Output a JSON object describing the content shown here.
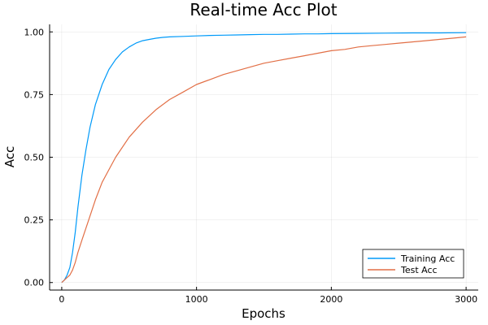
{
  "chart_data": {
    "type": "line",
    "title": "Real-time Acc Plot",
    "xlabel": "Epochs",
    "ylabel": "Acc",
    "xlim": [
      -90,
      3090
    ],
    "ylim": [
      -0.03,
      1.03
    ],
    "xticks": [
      0,
      1000,
      2000,
      3000
    ],
    "xtick_labels": [
      "0",
      "1000",
      "2000",
      "3000"
    ],
    "yticks": [
      0,
      0.25,
      0.5,
      0.75,
      1.0
    ],
    "ytick_labels": [
      "0.00",
      "0.25",
      "0.50",
      "0.75",
      "1.00"
    ],
    "grid": true,
    "legend_position": "bottom-right",
    "series": [
      {
        "name": "Training Acc",
        "color": "#009af9",
        "x": [
          0,
          20,
          40,
          60,
          80,
          100,
          120,
          150,
          180,
          210,
          250,
          300,
          350,
          400,
          450,
          500,
          550,
          600,
          650,
          700,
          750,
          800,
          900,
          1000,
          1100,
          1200,
          1300,
          1400,
          1500,
          1600,
          1700,
          1800,
          1900,
          2000,
          2200,
          2400,
          2600,
          2800,
          3000
        ],
        "y": [
          0.0,
          0.01,
          0.03,
          0.06,
          0.12,
          0.2,
          0.3,
          0.43,
          0.53,
          0.62,
          0.71,
          0.79,
          0.85,
          0.89,
          0.92,
          0.94,
          0.955,
          0.965,
          0.97,
          0.975,
          0.978,
          0.98,
          0.982,
          0.984,
          0.986,
          0.987,
          0.988,
          0.989,
          0.99,
          0.99,
          0.991,
          0.992,
          0.992,
          0.993,
          0.994,
          0.995,
          0.996,
          0.996,
          0.997
        ]
      },
      {
        "name": "Test Acc",
        "color": "#e26f46",
        "x": [
          0,
          20,
          40,
          60,
          80,
          100,
          120,
          150,
          200,
          250,
          300,
          350,
          400,
          500,
          600,
          700,
          800,
          900,
          1000,
          1100,
          1200,
          1300,
          1400,
          1500,
          1600,
          1700,
          1800,
          1900,
          2000,
          2100,
          2200,
          2300,
          2400,
          2500,
          2600,
          2700,
          2800,
          2900,
          3000
        ],
        "y": [
          0.0,
          0.01,
          0.02,
          0.03,
          0.05,
          0.08,
          0.12,
          0.17,
          0.25,
          0.33,
          0.4,
          0.45,
          0.5,
          0.58,
          0.64,
          0.69,
          0.73,
          0.76,
          0.79,
          0.81,
          0.83,
          0.845,
          0.86,
          0.875,
          0.885,
          0.895,
          0.905,
          0.915,
          0.925,
          0.93,
          0.94,
          0.945,
          0.95,
          0.955,
          0.96,
          0.965,
          0.97,
          0.975,
          0.98
        ]
      }
    ]
  }
}
